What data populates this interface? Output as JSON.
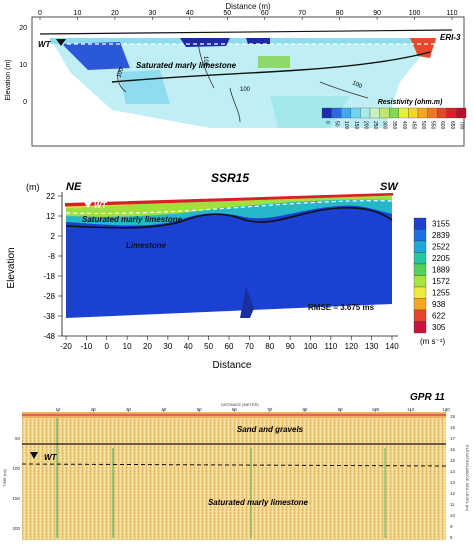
{
  "ert": {
    "title": "ERI-3",
    "x_axis_label": "Distance (m)",
    "x_ticks": [
      "0",
      "10",
      "20",
      "30",
      "40",
      "50",
      "60",
      "70",
      "80",
      "90",
      "100",
      "110"
    ],
    "y_axis_label": "Elevation (m)",
    "y_ticks": [
      "20",
      "10",
      "0"
    ],
    "wt_label": "WT",
    "layer_label": "Saturated marly limestone",
    "contour_labels": [
      "100",
      "100",
      "100",
      "100"
    ],
    "legend_title": "Resistivity (ohm.m)",
    "legend_values": [
      "0",
      "50",
      "100",
      "150",
      "200",
      "250",
      "300",
      "350",
      "400",
      "450",
      "500",
      "550",
      "600",
      "650",
      "700"
    ],
    "legend_colors": [
      "#1c2bb0",
      "#2a6ae0",
      "#3fa8ef",
      "#6fd4f0",
      "#a9ecef",
      "#c8f0c0",
      "#bfe76e",
      "#7ed957",
      "#e6ef3a",
      "#f3d52b",
      "#f4a623",
      "#ef7a23",
      "#e8442a",
      "#d81f2a",
      "#b8102a"
    ]
  },
  "seismic": {
    "title": "SSR15",
    "left_label": "NE",
    "right_label": "SW",
    "y_unit": "(m)",
    "y_axis_label": "Elevation",
    "y_ticks": [
      "22",
      "12",
      "2",
      "-8",
      "-18",
      "-28",
      "-38",
      "-48"
    ],
    "x_axis_label": "Distance",
    "x_ticks": [
      "-20",
      "-10",
      "0",
      "10",
      "20",
      "30",
      "40",
      "50",
      "60",
      "70",
      "80",
      "90",
      "100",
      "110",
      "120",
      "130",
      "140"
    ],
    "wt_label": "WT",
    "layer1_label": "Saturated marly limestone",
    "layer2_label": "Limestone",
    "rmse": "RMSE = 3.675 ms",
    "legend_values": [
      "3155",
      "2839",
      "2522",
      "2205",
      "1889",
      "1572",
      "1255",
      "938",
      "622",
      "305"
    ],
    "legend_colors": [
      "#1a3fd1",
      "#1e70e6",
      "#1fa8d8",
      "#27c4a2",
      "#53d15a",
      "#a6e33c",
      "#f0e83a",
      "#f5a623",
      "#e8442a",
      "#c8143e"
    ],
    "legend_unit": "(m s⁻¹)"
  },
  "gpr": {
    "title": "GPR 11",
    "top_label": "DISTANCE (METER)",
    "left_label": "TIME (ns)",
    "right_label": "ELEVATION ABOVE SEA LEVEL (m)",
    "layer1_label": "Sand and gravels",
    "layer2_label": "Saturated marly limestone",
    "wt_label": "WT",
    "x_ticks": [
      "10",
      "20",
      "30",
      "40",
      "50",
      "60",
      "70",
      "80",
      "90",
      "100",
      "110",
      "120"
    ],
    "left_ticks": [
      "50",
      "100",
      "150",
      "200"
    ],
    "right_ticks": [
      "19",
      "18",
      "17",
      "16",
      "15",
      "14",
      "13",
      "12",
      "11",
      "10",
      "9",
      "8"
    ]
  }
}
